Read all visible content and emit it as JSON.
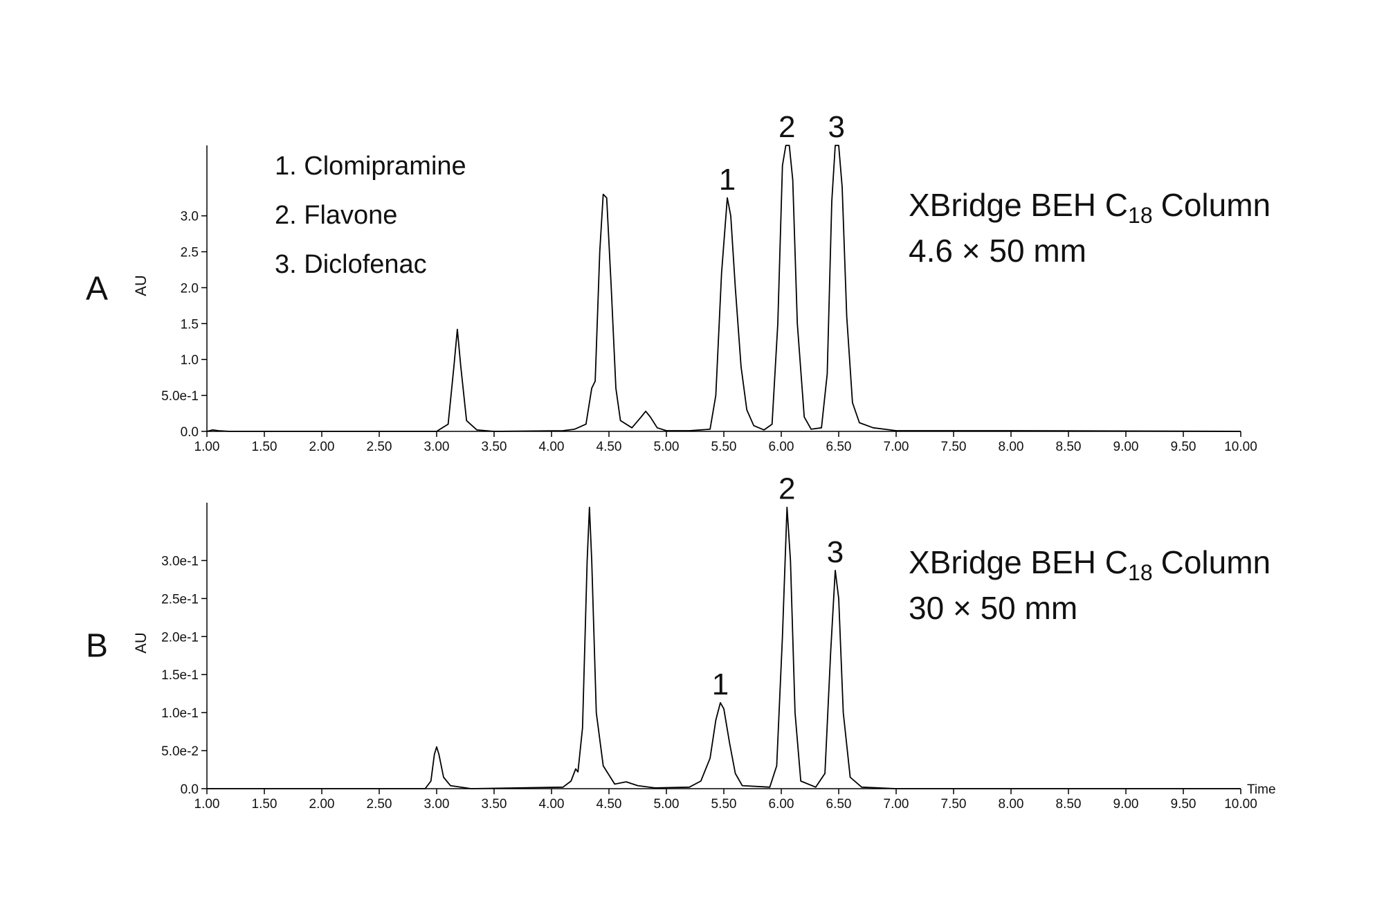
{
  "chart_data": [
    {
      "type": "line",
      "panel": "A",
      "ylabel": "AU",
      "compounds": [
        "1. Clomipramine",
        "2. Flavone",
        "3. Diclofenac"
      ],
      "column": {
        "name": "XBridge BEH C",
        "subscript": "18",
        "suffix": "Column",
        "size": "4.6 × 50 mm"
      },
      "color": "#000000",
      "xlim": [
        1.0,
        10.0
      ],
      "xticks": [
        {
          "value": 1.0,
          "label": "1.00"
        },
        {
          "value": 1.5,
          "label": "1.50"
        },
        {
          "value": 2.0,
          "label": "2.00"
        },
        {
          "value": 2.5,
          "label": "2.50"
        },
        {
          "value": 3.0,
          "label": "3.00"
        },
        {
          "value": 3.5,
          "label": "3.50"
        },
        {
          "value": 4.0,
          "label": "4.00"
        },
        {
          "value": 4.5,
          "label": "4.50"
        },
        {
          "value": 5.0,
          "label": "5.00"
        },
        {
          "value": 5.5,
          "label": "5.50"
        },
        {
          "value": 6.0,
          "label": "6.00"
        },
        {
          "value": 6.5,
          "label": "6.50"
        },
        {
          "value": 7.0,
          "label": "7.00"
        },
        {
          "value": 7.5,
          "label": "7.50"
        },
        {
          "value": 8.0,
          "label": "8.00"
        },
        {
          "value": 8.5,
          "label": "8.50"
        },
        {
          "value": 9.0,
          "label": "9.00"
        },
        {
          "value": 9.5,
          "label": "9.50"
        },
        {
          "value": 10.0,
          "label": "10.00"
        }
      ],
      "ylim": [
        0,
        3.98
      ],
      "yticks": [
        {
          "value": 0,
          "label": "0.0"
        },
        {
          "value": 0.5,
          "label": "5.0e-1"
        },
        {
          "value": 1,
          "label": "1.0"
        },
        1.5,
        {
          "value": 2,
          "label": "2.0"
        },
        2.5,
        {
          "value": 3,
          "label": "3.0"
        }
      ],
      "peaks": [
        {
          "label": "1",
          "time": 5.53
        },
        {
          "label": "2",
          "time": 6.05
        },
        {
          "label": "3",
          "time": 6.48
        }
      ],
      "x": [
        1.0,
        1.05,
        1.1,
        1.2,
        3.0,
        3.1,
        3.15,
        3.18,
        3.21,
        3.26,
        3.35,
        3.5,
        4.1,
        4.2,
        4.3,
        4.35,
        4.38,
        4.42,
        4.45,
        4.48,
        4.52,
        4.56,
        4.6,
        4.7,
        4.78,
        4.82,
        4.86,
        4.92,
        5.0,
        5.2,
        5.38,
        5.43,
        5.48,
        5.53,
        5.56,
        5.6,
        5.65,
        5.7,
        5.76,
        5.85,
        5.92,
        5.97,
        6.01,
        6.04,
        6.07,
        6.1,
        6.14,
        6.2,
        6.26,
        6.35,
        6.4,
        6.44,
        6.47,
        6.5,
        6.53,
        6.57,
        6.62,
        6.68,
        6.8,
        7.0,
        7.3,
        8.0,
        10.0
      ],
      "values": [
        0,
        0.02,
        0.01,
        0,
        0,
        0.1,
        0.9,
        1.42,
        0.9,
        0.15,
        0.02,
        0,
        0.01,
        0.03,
        0.1,
        0.6,
        0.7,
        2.5,
        3.3,
        3.25,
        2.0,
        0.6,
        0.15,
        0.05,
        0.2,
        0.28,
        0.2,
        0.05,
        0.01,
        0.01,
        0.03,
        0.5,
        2.2,
        3.25,
        3.0,
        2.0,
        0.9,
        0.3,
        0.08,
        0.02,
        0.1,
        1.5,
        3.7,
        3.98,
        3.98,
        3.5,
        1.5,
        0.2,
        0.03,
        0.05,
        0.8,
        3.2,
        3.98,
        3.98,
        3.4,
        1.6,
        0.4,
        0.12,
        0.05,
        0.01,
        0.01,
        0.01,
        0
      ]
    },
    {
      "type": "line",
      "panel": "B",
      "ylabel": "AU",
      "xlabel": "Time",
      "column": {
        "name": "XBridge BEH C",
        "subscript": "18",
        "suffix": "Column",
        "size": "30 × 50 mm"
      },
      "color": "#000000",
      "xlim": [
        1.0,
        10.0
      ],
      "xticks": [
        {
          "value": 1.0,
          "label": "1.00"
        },
        {
          "value": 1.5,
          "label": "1.50"
        },
        {
          "value": 2.0,
          "label": "2.00"
        },
        {
          "value": 2.5,
          "label": "2.50"
        },
        {
          "value": 3.0,
          "label": "3.00"
        },
        {
          "value": 3.5,
          "label": "3.50"
        },
        {
          "value": 4.0,
          "label": "4.00"
        },
        {
          "value": 4.5,
          "label": "4.50"
        },
        {
          "value": 5.0,
          "label": "5.00"
        },
        {
          "value": 5.5,
          "label": "5.50"
        },
        {
          "value": 6.0,
          "label": "6.00"
        },
        {
          "value": 6.5,
          "label": "6.50"
        },
        {
          "value": 7.0,
          "label": "7.00"
        },
        {
          "value": 7.5,
          "label": "7.50"
        },
        {
          "value": 8.0,
          "label": "8.00"
        },
        {
          "value": 8.5,
          "label": "8.50"
        },
        {
          "value": 9.0,
          "label": "9.00"
        },
        {
          "value": 9.5,
          "label": "9.50"
        },
        {
          "value": 10.0,
          "label": "10.00"
        }
      ],
      "ylim": [
        0,
        0.376
      ],
      "yticks": [
        {
          "value": 0,
          "label": "0.0"
        },
        {
          "value": 0.05,
          "label": "5.0e-2"
        },
        {
          "value": 0.1,
          "label": "1.0e-1"
        },
        {
          "value": 0.15,
          "label": "1.5e-1"
        },
        {
          "value": 0.2,
          "label": "2.0e-1"
        },
        {
          "value": 0.25,
          "label": "2.5e-1"
        },
        {
          "value": 0.3,
          "label": "3.0e-1"
        }
      ],
      "peaks": [
        {
          "label": "1",
          "time": 5.47
        },
        {
          "label": "2",
          "time": 6.05
        },
        {
          "label": "3",
          "time": 6.47
        }
      ],
      "x": [
        1.0,
        2.9,
        2.95,
        2.98,
        3.0,
        3.02,
        3.06,
        3.12,
        3.3,
        4.1,
        4.17,
        4.21,
        4.23,
        4.27,
        4.31,
        4.33,
        4.35,
        4.39,
        4.45,
        4.55,
        4.65,
        4.75,
        4.9,
        5.2,
        5.3,
        5.38,
        5.43,
        5.47,
        5.5,
        5.55,
        5.6,
        5.66,
        5.9,
        5.96,
        6.01,
        6.05,
        6.08,
        6.12,
        6.17,
        6.3,
        6.38,
        6.43,
        6.47,
        6.5,
        6.54,
        6.6,
        6.7,
        7.0,
        10.0
      ],
      "values": [
        0,
        0,
        0.01,
        0.045,
        0.055,
        0.045,
        0.015,
        0.004,
        0,
        0.002,
        0.01,
        0.026,
        0.022,
        0.08,
        0.3,
        0.37,
        0.3,
        0.1,
        0.03,
        0.006,
        0.009,
        0.004,
        0.001,
        0.002,
        0.01,
        0.04,
        0.09,
        0.113,
        0.105,
        0.06,
        0.02,
        0.004,
        0.002,
        0.03,
        0.2,
        0.37,
        0.3,
        0.1,
        0.01,
        0.002,
        0.02,
        0.18,
        0.287,
        0.25,
        0.1,
        0.015,
        0.002,
        0,
        0
      ]
    }
  ]
}
